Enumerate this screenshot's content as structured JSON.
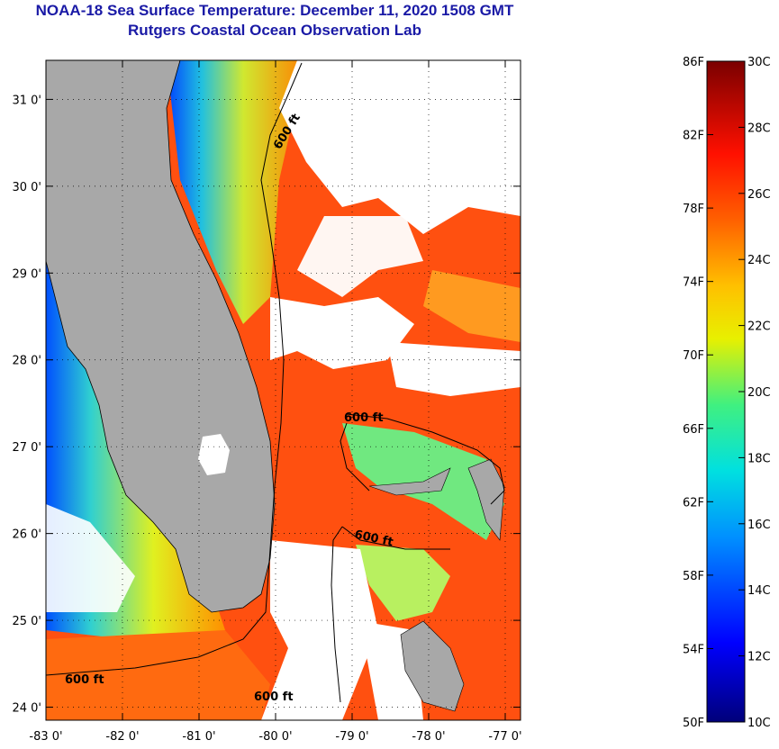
{
  "title": "NOAA-18 Sea Surface Temperature:  December 11, 2020 1508 GMT",
  "subtitle": "Rutgers Coastal Ocean Observation Lab",
  "map": {
    "lon_labels": [
      "-83 0'",
      "-82 0'",
      "-81 0'",
      "-80 0'",
      "-79 0'",
      "-78 0'",
      "-77 0'"
    ],
    "lat_labels": [
      "31 0'",
      "30 0'",
      "29 0'",
      "28 0'",
      "27 0'",
      "26 0'",
      "25 0'",
      "24 0'"
    ],
    "lon_values": [
      -83,
      -82,
      -81,
      -80,
      -79,
      -78,
      -77
    ],
    "lat_values": [
      31,
      30,
      29,
      28,
      27,
      26,
      25,
      24
    ],
    "lon_range": [
      -83,
      -76.8
    ],
    "lat_range": [
      23.85,
      31.45
    ],
    "contour_labels": [
      "600 ft",
      "600 ft",
      "600 ft",
      "600 ft",
      "600 ft"
    ],
    "colors": {
      "land": "#a8a8a8",
      "cloud": "#ffffff",
      "border": "#000000"
    }
  },
  "colorbar": {
    "f_labels": [
      "86F",
      "82F",
      "78F",
      "74F",
      "70F",
      "66F",
      "62F",
      "58F",
      "54F",
      "50F"
    ],
    "c_labels": [
      "30C",
      "28C",
      "26C",
      "24C",
      "22C",
      "20C",
      "18C",
      "16C",
      "14C",
      "12C",
      "10C"
    ],
    "f_values": [
      86,
      82,
      78,
      74,
      70,
      66,
      62,
      58,
      54,
      50
    ],
    "c_values": [
      30,
      28,
      26,
      24,
      22,
      20,
      18,
      16,
      14,
      12,
      10
    ],
    "range_c": [
      10,
      30
    ]
  }
}
